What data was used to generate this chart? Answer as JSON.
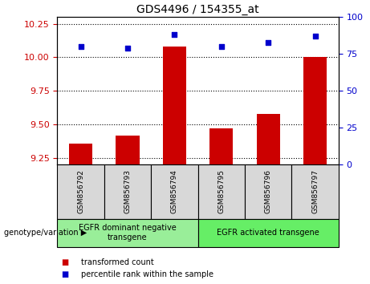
{
  "title": "GDS4496 / 154355_at",
  "samples": [
    "GSM856792",
    "GSM856793",
    "GSM856794",
    "GSM856795",
    "GSM856796",
    "GSM856797"
  ],
  "transformed_counts": [
    9.36,
    9.42,
    10.08,
    9.47,
    9.58,
    10.0
  ],
  "percentile_ranks": [
    80,
    79,
    88,
    80,
    83,
    87
  ],
  "ylim_left": [
    9.2,
    10.3
  ],
  "ylim_right": [
    0,
    100
  ],
  "yticks_left": [
    9.25,
    9.5,
    9.75,
    10.0,
    10.25
  ],
  "yticks_right": [
    0,
    25,
    50,
    75,
    100
  ],
  "bar_color": "#cc0000",
  "dot_color": "#0000cc",
  "groups": [
    {
      "label": "EGFR dominant negative\ntransgene",
      "samples_idx": [
        0,
        1,
        2
      ],
      "color": "#99ee99"
    },
    {
      "label": "EGFR activated transgene",
      "samples_idx": [
        3,
        4,
        5
      ],
      "color": "#66ee66"
    }
  ],
  "genotype_label": "genotype/variation",
  "legend_items": [
    {
      "color": "#cc0000",
      "label": "transformed count"
    },
    {
      "color": "#0000cc",
      "label": "percentile rank within the sample"
    }
  ],
  "grid_color": "black",
  "background_color": "#ffffff",
  "tick_label_color_left": "#cc0000",
  "tick_label_color_right": "#0000cc",
  "bar_width": 0.5,
  "sample_box_color": "#d8d8d8"
}
